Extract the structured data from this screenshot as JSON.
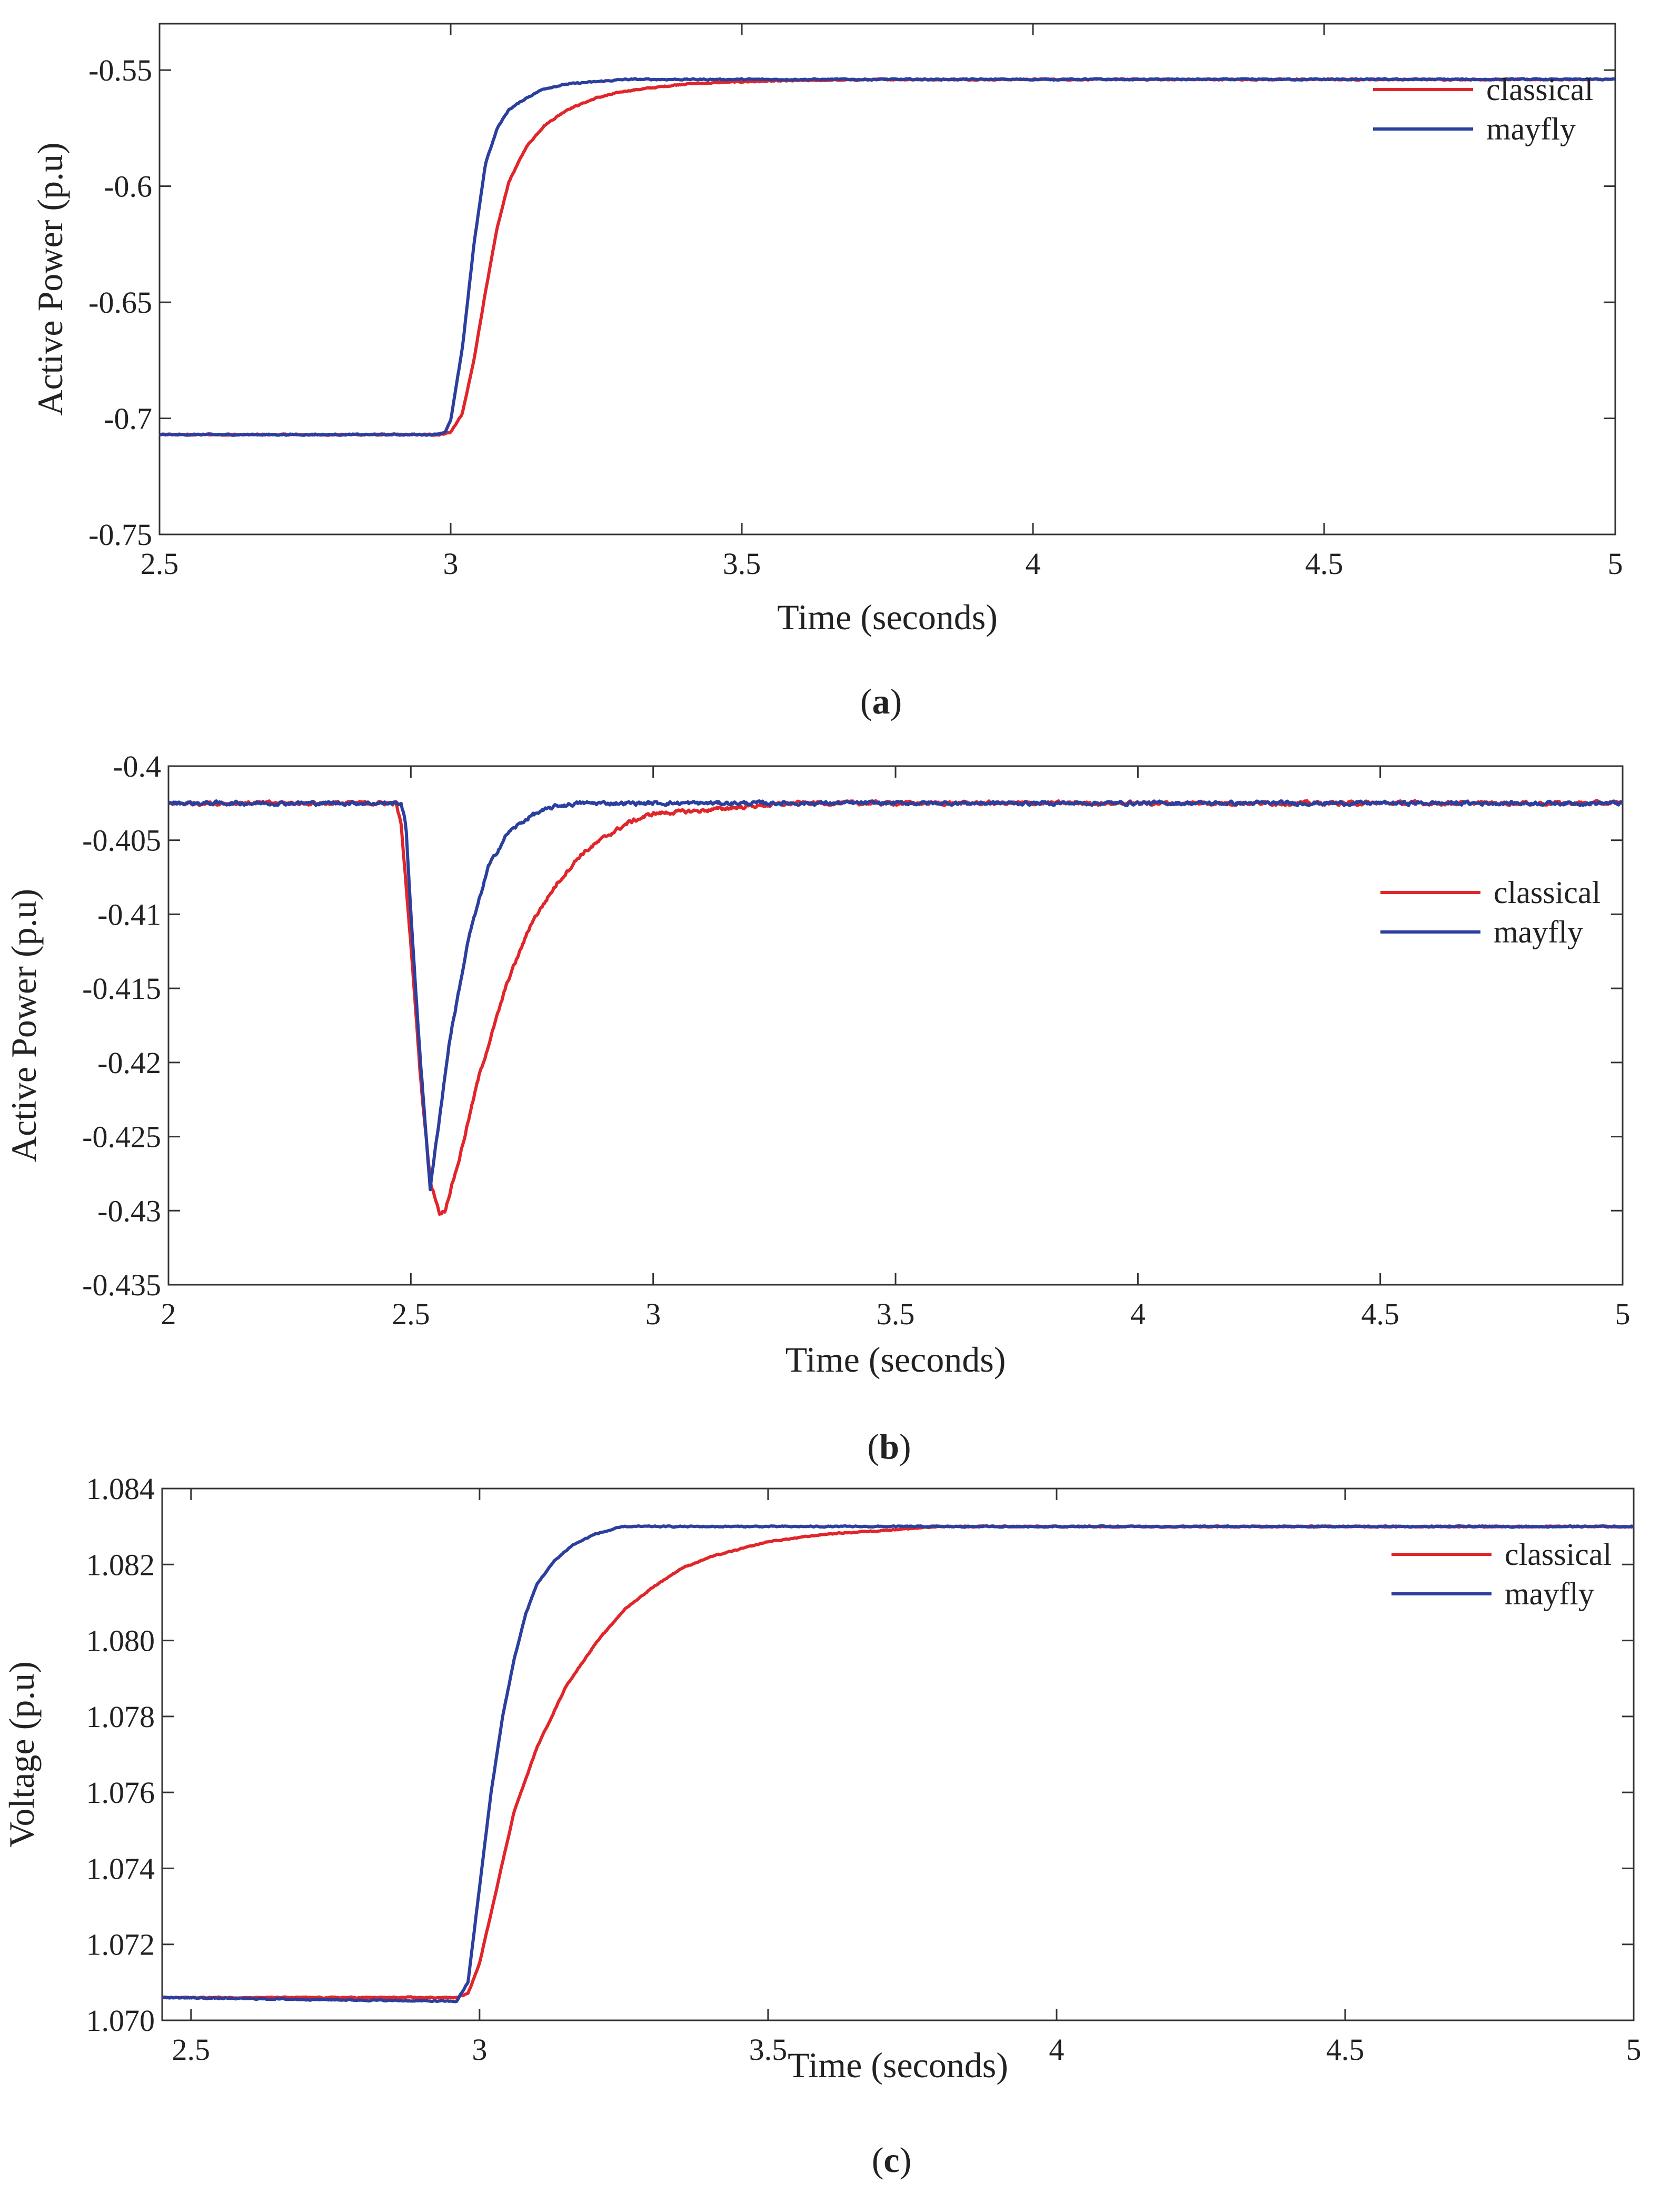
{
  "chart_data": [
    {
      "type": "line",
      "panel_label": "a",
      "xlabel": "Time (seconds)",
      "ylabel": "Active Power (p.u)",
      "xlim": [
        2.5,
        5
      ],
      "ylim": [
        -0.75,
        -0.53
      ],
      "xticks": [
        2.5,
        3,
        3.5,
        4,
        4.5,
        5
      ],
      "xtick_labels": [
        "2.5",
        "3",
        "3.5",
        "4",
        "4.5",
        "5"
      ],
      "yticks": [
        -0.75,
        -0.7,
        -0.65,
        -0.6,
        -0.55
      ],
      "ytick_labels": [
        "-0.75",
        "-0.7",
        "-0.65",
        "-0.6",
        "-0.55"
      ],
      "grid": false,
      "legend_position": "top-right",
      "series": [
        {
          "name": "classical",
          "color": "#e0262a",
          "x": [
            2.5,
            2.98,
            3.0,
            3.02,
            3.04,
            3.06,
            3.08,
            3.1,
            3.13,
            3.16,
            3.2,
            3.25,
            3.3,
            3.4,
            3.5,
            3.6,
            3.75,
            4.0,
            5.0
          ],
          "y": [
            -0.707,
            -0.707,
            -0.706,
            -0.698,
            -0.675,
            -0.645,
            -0.618,
            -0.598,
            -0.583,
            -0.574,
            -0.567,
            -0.562,
            -0.559,
            -0.556,
            -0.555,
            -0.5545,
            -0.554,
            -0.554,
            -0.554
          ]
        },
        {
          "name": "mayfly",
          "color": "#2b3f9e",
          "x": [
            2.5,
            2.97,
            2.99,
            3.0,
            3.02,
            3.04,
            3.06,
            3.08,
            3.1,
            3.13,
            3.16,
            3.2,
            3.25,
            3.3,
            3.5,
            5.0
          ],
          "y": [
            -0.707,
            -0.707,
            -0.706,
            -0.701,
            -0.67,
            -0.625,
            -0.59,
            -0.575,
            -0.567,
            -0.562,
            -0.558,
            -0.556,
            -0.555,
            -0.554,
            -0.554,
            -0.554
          ]
        }
      ]
    },
    {
      "type": "line",
      "panel_label": "b",
      "xlabel": "Time (seconds)",
      "ylabel": "Active Power (p.u)",
      "xlim": [
        2,
        5
      ],
      "ylim": [
        -0.435,
        -0.4
      ],
      "xticks": [
        2,
        2.5,
        3,
        3.5,
        4,
        4.5,
        5
      ],
      "xtick_labels": [
        "2",
        "2.5",
        "3",
        "3.5",
        "4",
        "4.5",
        "5"
      ],
      "yticks": [
        -0.435,
        -0.43,
        -0.425,
        -0.42,
        -0.415,
        -0.41,
        -0.405,
        -0.4
      ],
      "ytick_labels": [
        "-0.435",
        "-0.43",
        "-0.425",
        "-0.42",
        "-0.415",
        "-0.41",
        "-0.405",
        "-0.4"
      ],
      "grid": false,
      "legend_position": "upper-right",
      "series": [
        {
          "name": "classical",
          "color": "#e0262a",
          "x": [
            2.0,
            2.47,
            2.48,
            2.5,
            2.52,
            2.54,
            2.56,
            2.57,
            2.6,
            2.64,
            2.7,
            2.75,
            2.8,
            2.85,
            2.9,
            2.95,
            3.0,
            3.1,
            3.2,
            3.3,
            5.0
          ],
          "y": [
            -0.4025,
            -0.4025,
            -0.404,
            -0.412,
            -0.421,
            -0.428,
            -0.4302,
            -0.43,
            -0.4265,
            -0.421,
            -0.4145,
            -0.4105,
            -0.408,
            -0.406,
            -0.4048,
            -0.4038,
            -0.4032,
            -0.403,
            -0.4027,
            -0.4025,
            -0.4025
          ]
        },
        {
          "name": "mayfly",
          "color": "#2b3f9e",
          "x": [
            2.0,
            2.48,
            2.49,
            2.5,
            2.52,
            2.54,
            2.55,
            2.58,
            2.62,
            2.66,
            2.7,
            2.75,
            2.8,
            2.85,
            5.0
          ],
          "y": [
            -0.4025,
            -0.4025,
            -0.404,
            -0.41,
            -0.42,
            -0.4285,
            -0.426,
            -0.4185,
            -0.4115,
            -0.4068,
            -0.4045,
            -0.4033,
            -0.4027,
            -0.4025,
            -0.4025
          ]
        }
      ]
    },
    {
      "type": "line",
      "panel_label": "c",
      "xlabel": "Time (seconds)",
      "ylabel": "Voltage (p.u)",
      "xlim": [
        2.45,
        5
      ],
      "ylim": [
        1.07,
        1.084
      ],
      "xticks": [
        2.5,
        3,
        3.5,
        4,
        4.5,
        5
      ],
      "xtick_labels": [
        "2.5",
        "3",
        "3.5",
        "4",
        "4.5",
        "5"
      ],
      "yticks": [
        1.07,
        1.072,
        1.074,
        1.076,
        1.078,
        1.08,
        1.082,
        1.084
      ],
      "ytick_labels": [
        "1.070",
        "1.072",
        "1.074",
        "1.076",
        "1.078",
        "1.080",
        "1.082",
        "1.084"
      ],
      "grid": false,
      "legend_position": "top-right",
      "series": [
        {
          "name": "classical",
          "color": "#e0262a",
          "x": [
            2.45,
            2.96,
            2.98,
            3.0,
            3.03,
            3.06,
            3.1,
            3.15,
            3.2,
            3.25,
            3.3,
            3.35,
            3.4,
            3.5,
            3.6,
            3.7,
            3.8,
            4.0,
            5.0
          ],
          "y": [
            1.0706,
            1.0706,
            1.0707,
            1.0715,
            1.0735,
            1.0755,
            1.0772,
            1.0788,
            1.0799,
            1.0808,
            1.0814,
            1.0819,
            1.0822,
            1.0826,
            1.0828,
            1.0829,
            1.083,
            1.083,
            1.083
          ]
        },
        {
          "name": "mayfly",
          "color": "#2b3f9e",
          "x": [
            2.45,
            2.96,
            2.98,
            3.0,
            3.02,
            3.04,
            3.06,
            3.08,
            3.1,
            3.13,
            3.16,
            3.2,
            3.25,
            3.3,
            3.4,
            5.0
          ],
          "y": [
            1.0706,
            1.0705,
            1.071,
            1.0735,
            1.076,
            1.078,
            1.0795,
            1.0807,
            1.0815,
            1.0821,
            1.0825,
            1.0828,
            1.083,
            1.083,
            1.083,
            1.083
          ]
        }
      ]
    }
  ]
}
